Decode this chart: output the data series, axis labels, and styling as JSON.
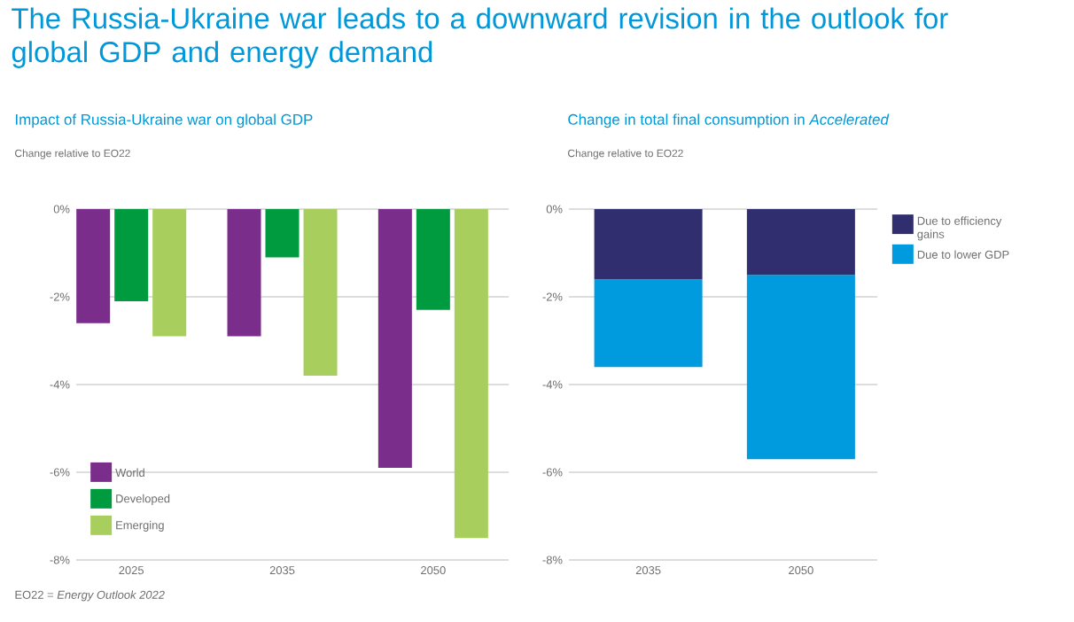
{
  "chart_data": [
    {
      "type": "bar",
      "title": "The Russia-Ukraine war leads to a downward revision in the outlook for global GDP and energy demand",
      "subtitle": "Impact of Russia-Ukraine war on global GDP",
      "ylabel": "Change relative to EO22",
      "annotations": [
        "EO22 = *Energy Outlook 2022*"
      ],
      "categories": [
        "2025",
        "2035",
        "2050"
      ],
      "series": [
        {
          "name": "World",
          "color": "#7b2d8b",
          "values": [
            -2.6,
            -2.9,
            -5.9
          ]
        },
        {
          "name": "Developed",
          "color": "#009b3e",
          "values": [
            -2.1,
            -1.1,
            -2.3
          ]
        },
        {
          "name": "Emerging",
          "color": "#a8cf5e",
          "values": [
            -2.9,
            -3.8,
            -7.5
          ]
        }
      ],
      "ylim": [
        -8,
        0
      ],
      "yticks": [
        {
          "value": 0,
          "label": "0%"
        },
        {
          "value": -2,
          "label": "-2%"
        },
        {
          "value": -4,
          "label": "-4%"
        },
        {
          "value": -6,
          "label": "-6%"
        },
        {
          "value": -8,
          "label": "-8%"
        }
      ],
      "grid": "y",
      "legend": "bottom left"
    },
    {
      "type": "bar",
      "title": "Change in total final consumption in *Accelerated*",
      "ylabel": "Change relative to EO22",
      "categories": [
        "2035",
        "2050"
      ],
      "stacked": true,
      "series": [
        {
          "name": "Due to efficiency gains",
          "color": "#302e6e",
          "values": [
            -1.6,
            -1.5
          ]
        },
        {
          "name": "Due to lower GDP",
          "color": "#009ade",
          "values": [
            -2.0,
            -4.2
          ]
        }
      ],
      "ylim": [
        -8,
        0
      ],
      "yticks": [
        {
          "value": 0,
          "label": "0%"
        },
        {
          "value": -2,
          "label": "-2%"
        },
        {
          "value": -4,
          "label": "-4%"
        },
        {
          "value": -6,
          "label": "-6%"
        },
        {
          "value": -8,
          "label": "-8%"
        }
      ],
      "grid": "y",
      "legend": "top right"
    }
  ]
}
